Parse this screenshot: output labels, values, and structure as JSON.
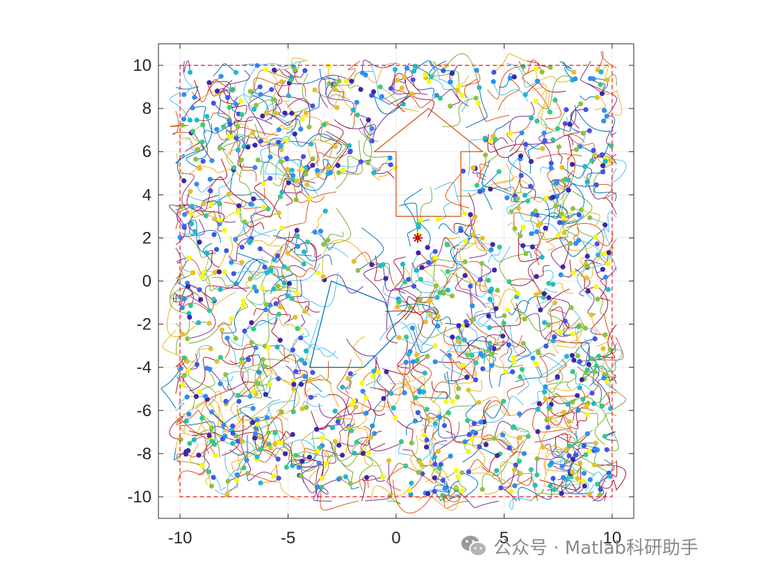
{
  "chart_data": {
    "type": "scatter",
    "title": "",
    "xlabel": "",
    "ylabel": "",
    "xlim": [
      -11,
      11
    ],
    "ylim": [
      -11,
      11
    ],
    "xticks": [
      -10,
      -5,
      0,
      5,
      10
    ],
    "yticks": [
      10,
      8,
      6,
      4,
      2,
      0,
      -2,
      -4,
      -6,
      -8,
      -10
    ],
    "xtick_labels": [
      "-10",
      "-5",
      "0",
      "5",
      "10"
    ],
    "ytick_labels": [
      "10",
      "8",
      "6",
      "4",
      "2",
      "0",
      "-2",
      "-4",
      "-6",
      "-8",
      "-10"
    ],
    "grid": true,
    "legend": "none",
    "boundary": {
      "x": [
        -10,
        10,
        10,
        -10,
        -10
      ],
      "y": [
        10,
        10,
        -10,
        -10,
        10
      ],
      "color": "#e8262b",
      "style": "dashed"
    },
    "arrow_obstacle": {
      "x": [
        0,
        0,
        -1,
        1.5,
        4,
        3,
        3,
        0
      ],
      "y": [
        3,
        6,
        6,
        8,
        6,
        6,
        3,
        3
      ],
      "color": "#d95319"
    },
    "pentagon_obstacle": {
      "x": [
        -4,
        -3,
        -0.5,
        0,
        -1.5,
        -4
      ],
      "y": [
        -4,
        0,
        -1,
        -2.5,
        -4,
        -4
      ],
      "color": "#0072bd"
    },
    "target_marker": {
      "x": 1,
      "y": 2,
      "color": "#cc0000"
    },
    "trajectory_colors": [
      "#0072bd",
      "#d95319",
      "#edb120",
      "#7e2f8e",
      "#77ac30",
      "#4dbeee",
      "#a2142f"
    ],
    "point_colors": [
      "#3e26a8",
      "#4353e8",
      "#2d8ef5",
      "#1fb8d0",
      "#35c98a",
      "#8cc43e",
      "#e6c02a",
      "#f9f90f"
    ],
    "particle_count": 1000,
    "excluded_regions": [
      {
        "x": [
          0,
          3
        ],
        "y": [
          3,
          6
        ]
      },
      {
        "x": [
          -1,
          4
        ],
        "y": [
          6,
          8
        ]
      },
      {
        "x": [
          -4,
          0
        ],
        "y": [
          -4,
          0
        ]
      },
      {
        "x": [
          -3,
          1
        ],
        "y": [
          1,
          5
        ]
      }
    ]
  },
  "watermark": {
    "text": "公众号 · Matlab科研助手"
  }
}
